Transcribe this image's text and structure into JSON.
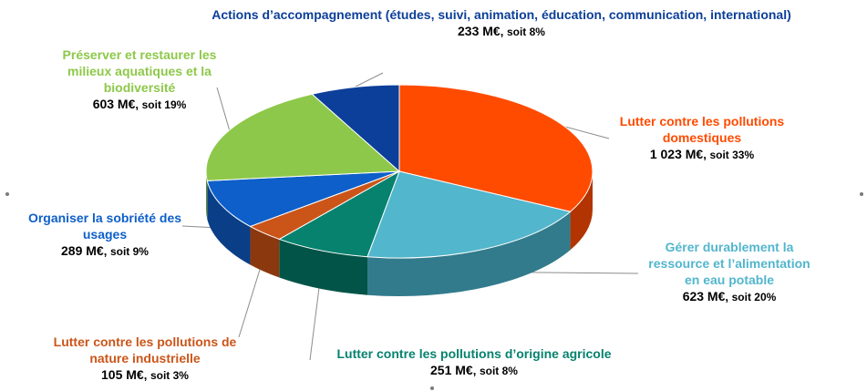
{
  "chart_data": {
    "type": "pie",
    "title": "",
    "unit": "M€",
    "slices": [
      {
        "label": "Lutter contre les pollutions domestiques",
        "amount": "1 023 M€",
        "pct_text": "soit 33%",
        "value": 1023,
        "pct": 33,
        "color": "#ff4b00",
        "side": "#b13402"
      },
      {
        "label": "Gérer durablement la ressource et l’alimentation en eau potable",
        "amount": "623 M€",
        "pct_text": "soit 20%",
        "value": 623,
        "pct": 20,
        "color": "#52b6cd",
        "side": "#327b8c"
      },
      {
        "label": "Lutter contre les pollutions d’origine agricole",
        "amount": "251 M€",
        "pct_text": "soit 8%",
        "value": 251,
        "pct": 8,
        "color": "#06826e",
        "side": "#035448"
      },
      {
        "label": "Lutter contre les pollutions de nature industrielle",
        "amount": "105 M€",
        "pct_text": "soit 3%",
        "value": 105,
        "pct": 3,
        "color": "#cb5519",
        "side": "#8c380f"
      },
      {
        "label": "Organiser la sobriété des usages",
        "amount": "289 M€",
        "pct_text": "soit 9%",
        "value": 289,
        "pct": 9,
        "color": "#0e5fc9",
        "side": "#0a3f87"
      },
      {
        "label": "Préserver et restaurer les milieux aquatiques et la biodiversité",
        "amount": "603 M€",
        "pct_text": "soit 19%",
        "value": 603,
        "pct": 19,
        "color": "#8ec84a",
        "side": "#5e8a2c"
      },
      {
        "label": "Actions d’accompagnement (études, suivi, animation, éducation, communication, international)",
        "amount": "233 M€",
        "pct_text": "soit 8%",
        "value": 233,
        "pct": 8,
        "color": "#0c3f99",
        "side": "#072a68"
      }
    ]
  }
}
